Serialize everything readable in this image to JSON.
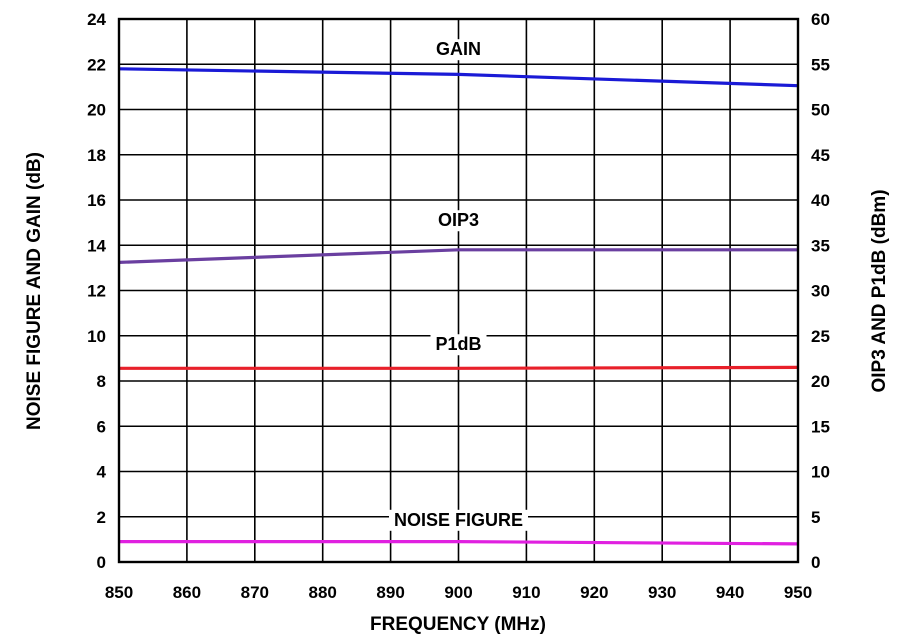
{
  "chart_data": {
    "type": "line",
    "xlabel": "FREQUENCY (MHz)",
    "ylabel_left": "NOISE FIGURE AND GAIN (dB)",
    "ylabel_right": "OIP3 AND P1dB (dBm)",
    "xlim": [
      850,
      950
    ],
    "ylim_left": [
      0,
      24
    ],
    "ylim_right": [
      0,
      60
    ],
    "x_ticks": [
      "850",
      "860",
      "870",
      "880",
      "890",
      "900",
      "910",
      "920",
      "930",
      "940",
      "950"
    ],
    "y_left_ticks": [
      "0",
      "2",
      "4",
      "6",
      "8",
      "10",
      "12",
      "14",
      "16",
      "18",
      "20",
      "22",
      "24"
    ],
    "y_right_ticks": [
      "0",
      "5",
      "10",
      "15",
      "20",
      "25",
      "30",
      "35",
      "40",
      "45",
      "50",
      "55",
      "60"
    ],
    "grid": true,
    "series": [
      {
        "name": "GAIN",
        "axis": "left",
        "color": "#1a1ad6",
        "x": [
          850,
          900,
          950
        ],
        "y": [
          21.8,
          21.55,
          21.05
        ],
        "label_x": 900,
        "label_y": 22.4
      },
      {
        "name": "OIP3",
        "axis": "right",
        "color": "#6a3fa0",
        "x": [
          850,
          900,
          950
        ],
        "y": [
          33.1,
          34.5,
          34.5
        ],
        "label_x": 900,
        "label_y": 37.1
      },
      {
        "name": "P1dB",
        "axis": "right",
        "color": "#e8202a",
        "x": [
          850,
          900,
          950
        ],
        "y": [
          21.4,
          21.4,
          21.5
        ],
        "label_x": 900,
        "label_y": 23.4
      },
      {
        "name": "NOISE FIGURE",
        "axis": "left",
        "color": "#e020e0",
        "x": [
          850,
          900,
          950
        ],
        "y": [
          0.9,
          0.9,
          0.8
        ],
        "label_x": 900,
        "label_y": 1.6
      }
    ]
  }
}
